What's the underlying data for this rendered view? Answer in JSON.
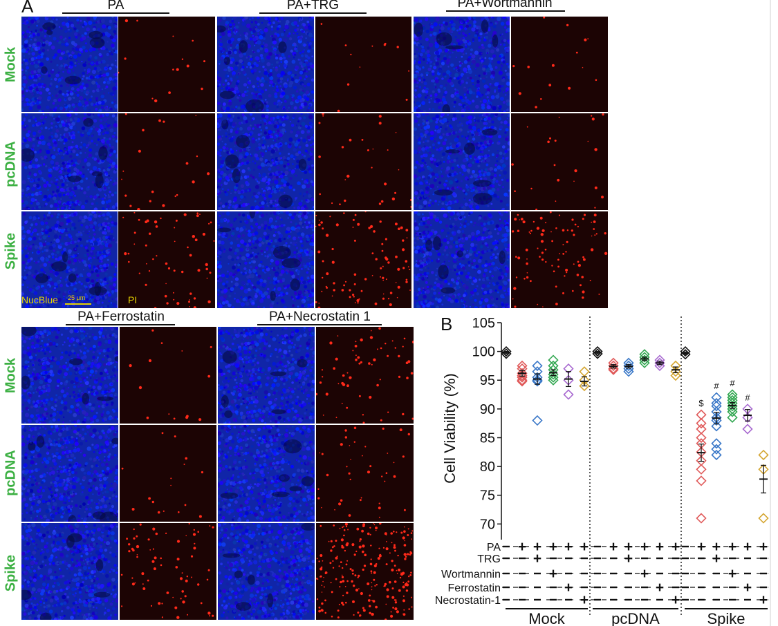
{
  "panel_a": {
    "letter": "A",
    "groups": [
      "PA",
      "PA+TRG",
      "PA+Wortmannin",
      "PA+Ferrostatin",
      "PA+Necrostatin 1"
    ],
    "rows": [
      "Mock",
      "pcDNA",
      "Spike"
    ],
    "stain_blue_label": "NucBlue",
    "scale_bar_label": "25 µm",
    "stain_red_label": "PI"
  },
  "panel_b": {
    "letter": "B",
    "ylabel": "Cell Viability (%)",
    "yticks": [
      "105",
      "100",
      "95",
      "90",
      "85",
      "80",
      "75",
      "70"
    ],
    "treatment_rows": [
      "PA",
      "TRG",
      "Wortmannin",
      "Ferrostatin",
      "Necrostatin-1"
    ],
    "groups": [
      "Mock",
      "pcDNA",
      "Spike"
    ],
    "sig_dollar": "$",
    "sig_hash": "#"
  },
  "chart_data": {
    "type": "scatter",
    "ylabel": "Cell Viability (%)",
    "ylim": [
      68,
      105
    ],
    "yticks": [
      70,
      75,
      80,
      85,
      90,
      95,
      100,
      105
    ],
    "grid": false,
    "treatment_table": {
      "rows": [
        "PA",
        "TRG",
        "Wortmannin",
        "Ferrostatin",
        "Necrostatin-1"
      ],
      "signs": [
        [
          "-",
          "+",
          "+",
          "+",
          "+",
          "+"
        ],
        [
          "-",
          "-",
          "+",
          "-",
          "-",
          "-"
        ],
        [
          "-",
          "-",
          "-",
          "+",
          "-",
          "-"
        ],
        [
          "-",
          "-",
          "-",
          "-",
          "+",
          "-"
        ],
        [
          "-",
          "-",
          "-",
          "-",
          "-",
          "+"
        ]
      ]
    },
    "condition_colors": [
      "#111111",
      "#e05a5a",
      "#3a78c8",
      "#33a852",
      "#a86ad0",
      "#d4a530"
    ],
    "groups": [
      {
        "name": "Mock",
        "conditions": [
          {
            "points": [
              100,
              99.6
            ],
            "mean": 99.8,
            "err": 0.2
          },
          {
            "points": [
              97.5,
              97,
              96.2,
              95.5,
              95,
              94.8,
              95.8
            ],
            "mean": 96.2,
            "err": 0.5
          },
          {
            "points": [
              97.5,
              96.5,
              95.5,
              95,
              94.8,
              88
            ],
            "mean": 95.2,
            "err": 0.9
          },
          {
            "points": [
              98.5,
              97.5,
              96.8,
              96,
              95.5,
              95
            ],
            "mean": 96.3,
            "err": 0.5
          },
          {
            "points": [
              97,
              95,
              92.5
            ],
            "mean": 95.2,
            "err": 1.3
          },
          {
            "points": [
              96.5,
              95,
              94
            ],
            "mean": 94.8,
            "err": 0.8
          }
        ]
      },
      {
        "name": "pcDNA",
        "conditions": [
          {
            "points": [
              100,
              99.6
            ],
            "mean": 99.8,
            "err": 0.2
          },
          {
            "points": [
              98,
              97.5,
              97,
              96.8
            ],
            "mean": 97.4,
            "err": 0.3
          },
          {
            "points": [
              98,
              97.5,
              97,
              96.5
            ],
            "mean": 97.4,
            "err": 0.3
          },
          {
            "points": [
              99.5,
              99,
              98.5,
              98
            ],
            "mean": 98.7,
            "err": 0.3
          },
          {
            "points": [
              98.5,
              98,
              97.5
            ],
            "mean": 98,
            "err": 0.3
          },
          {
            "points": [
              97.5,
              96.5,
              95.8
            ],
            "mean": 96.8,
            "err": 0.5
          }
        ]
      },
      {
        "name": "Spike",
        "conditions": [
          {
            "points": [
              100,
              99.5
            ],
            "mean": 99.7,
            "err": 0.2
          },
          {
            "points": [
              89,
              87.5,
              86.5,
              85,
              84,
              82.5,
              81,
              79.5,
              77.5,
              71
            ],
            "mean": 82.4,
            "err": 1.5,
            "sig": "$"
          },
          {
            "points": [
              92,
              91,
              90.5,
              89.5,
              88.5,
              88,
              87,
              84,
              83,
              82
            ],
            "mean": 88.4,
            "err": 1.0,
            "sig": "#"
          },
          {
            "points": [
              92.5,
              92,
              91.5,
              91,
              90.5,
              90,
              89.5,
              88.5
            ],
            "mean": 90.6,
            "err": 0.5,
            "sig": "#"
          },
          {
            "points": [
              90,
              88.5,
              86.5
            ],
            "mean": 88.9,
            "err": 1.0,
            "sig": "#"
          },
          {
            "points": [
              82,
              79.5,
              71
            ],
            "mean": 77.8,
            "err": 2.4
          }
        ]
      }
    ]
  }
}
